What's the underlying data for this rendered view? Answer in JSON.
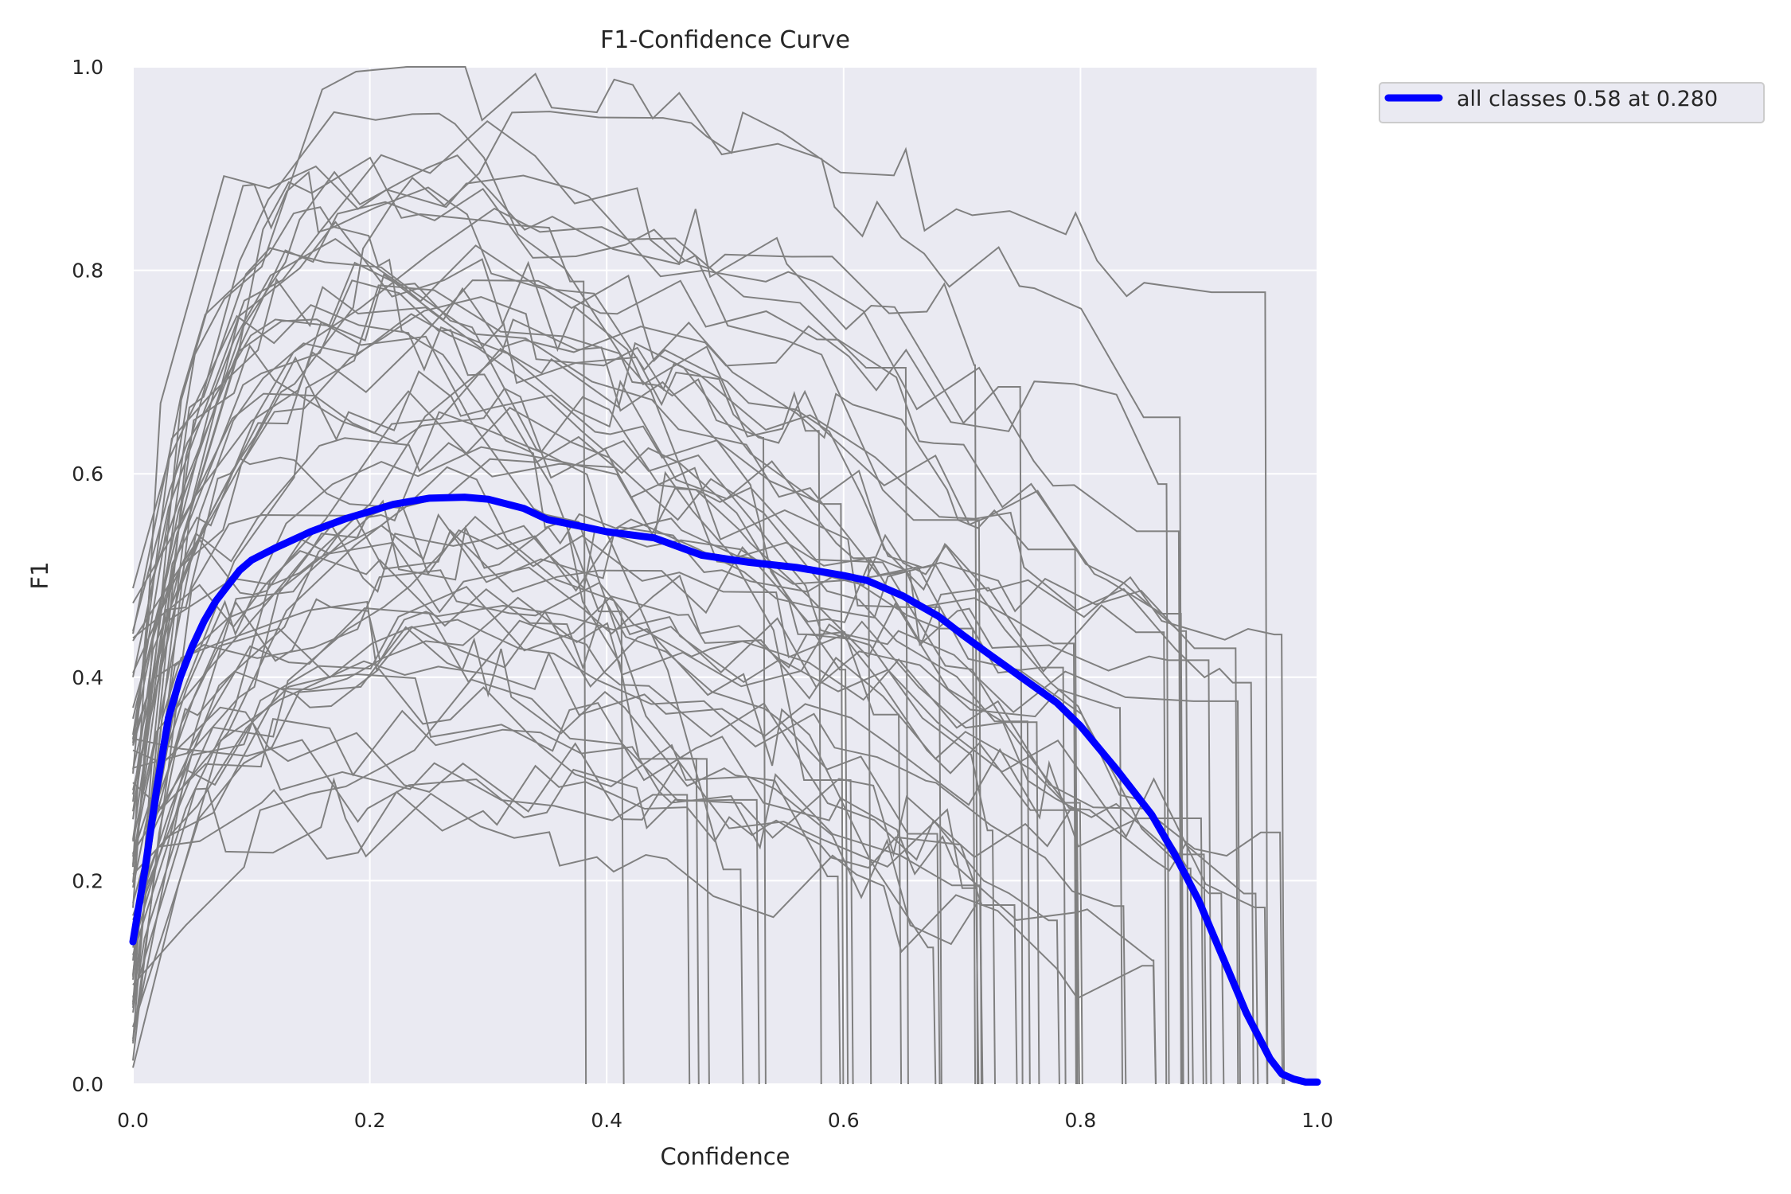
{
  "chart_data": {
    "type": "line",
    "title": "F1-Confidence Curve",
    "xlabel": "Confidence",
    "ylabel": "F1",
    "xlim": [
      0.0,
      1.0
    ],
    "ylim": [
      0.0,
      1.0
    ],
    "xticks": [
      "0.0",
      "0.2",
      "0.4",
      "0.6",
      "0.8",
      "1.0"
    ],
    "yticks": [
      "0.0",
      "0.2",
      "0.4",
      "0.6",
      "0.8",
      "1.0"
    ],
    "grid": true,
    "legend_position": "outside-top-right",
    "background_color": "#eaeaf2",
    "per_class_color": "#808080",
    "per_class_count": 60,
    "series": [
      {
        "name": "all classes 0.58 at 0.280",
        "color": "#0000ff",
        "x": [
          0.0,
          0.01,
          0.02,
          0.03,
          0.04,
          0.05,
          0.06,
          0.07,
          0.08,
          0.09,
          0.1,
          0.12,
          0.15,
          0.18,
          0.2,
          0.22,
          0.25,
          0.28,
          0.3,
          0.33,
          0.35,
          0.38,
          0.4,
          0.44,
          0.48,
          0.52,
          0.56,
          0.6,
          0.62,
          0.65,
          0.68,
          0.7,
          0.72,
          0.75,
          0.78,
          0.8,
          0.83,
          0.86,
          0.88,
          0.9,
          0.92,
          0.94,
          0.96,
          0.97,
          0.98,
          0.99,
          1.0
        ],
        "y": [
          0.14,
          0.21,
          0.29,
          0.36,
          0.4,
          0.43,
          0.455,
          0.475,
          0.49,
          0.505,
          0.515,
          0.527,
          0.543,
          0.556,
          0.563,
          0.57,
          0.576,
          0.577,
          0.575,
          0.566,
          0.555,
          0.548,
          0.543,
          0.537,
          0.52,
          0.513,
          0.508,
          0.5,
          0.495,
          0.48,
          0.46,
          0.442,
          0.425,
          0.4,
          0.375,
          0.352,
          0.31,
          0.265,
          0.225,
          0.18,
          0.125,
          0.07,
          0.025,
          0.01,
          0.005,
          0.002,
          0.002
        ]
      }
    ],
    "legend": [
      "all classes 0.58 at 0.280"
    ]
  }
}
